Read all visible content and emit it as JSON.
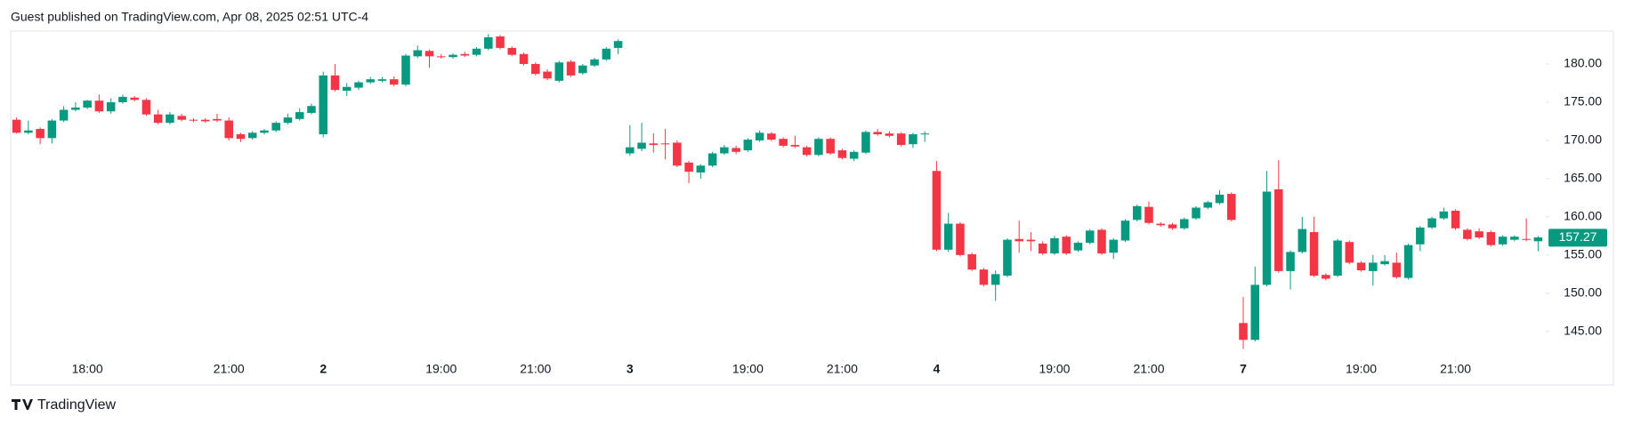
{
  "header": "Guest published on TradingView.com, Apr 08, 2025 02:51 UTC-4",
  "footer": "TradingView",
  "chart_data": {
    "type": "candlestick",
    "up_color": "#089981",
    "down_color": "#f23645",
    "open": [
      172.7,
      171.0,
      171.5,
      170.3,
      172.6,
      174.0,
      174.3,
      175.2,
      173.8,
      175.0,
      175.6,
      175.3,
      173.4,
      172.3,
      173.2,
      172.7,
      172.7,
      172.8,
      172.6,
      170.8,
      170.3,
      171.0,
      171.3,
      172.3,
      172.8,
      173.6,
      170.8,
      178.5,
      176.5,
      176.9,
      177.6,
      177.8,
      178.0,
      177.3,
      181.0,
      181.7,
      181.0,
      180.9,
      181.3,
      181.2,
      182.0,
      183.6,
      182.1,
      181.3,
      180.0,
      179.0,
      177.8,
      180.3,
      178.8,
      179.8,
      180.6,
      182.1,
      168.3,
      168.9,
      169.6,
      169.6,
      169.7,
      167.1,
      165.8,
      166.7,
      168.3,
      169.0,
      168.7,
      170.0,
      170.9,
      170.2,
      169.4,
      169.1,
      168.1,
      170.2,
      168.7,
      167.6,
      168.4,
      171.1,
      170.9,
      170.9,
      169.5,
      170.8,
      166.0,
      155.7,
      159.1,
      155.1,
      153.1,
      151.1,
      152.3,
      157.1,
      157.0,
      156.5,
      155.2,
      157.4,
      155.6,
      156.6,
      158.3,
      155.3,
      156.9,
      159.6,
      161.3,
      159.1,
      159.0,
      158.5,
      159.8,
      161.2,
      161.8,
      163.0,
      146.1,
      143.9,
      151.1,
      163.6,
      152.9,
      155.4,
      158.0,
      152.4,
      152.3,
      156.7,
      154.0,
      152.9,
      153.8,
      154.0,
      152.0,
      156.4,
      158.6,
      159.8,
      160.8,
      158.3,
      158.1,
      158.0,
      156.4,
      157.0,
      157.1,
      156.8
    ],
    "high": [
      173.0,
      172.6,
      171.7,
      172.8,
      174.5,
      175.0,
      175.3,
      176.0,
      175.5,
      176.0,
      175.8,
      175.5,
      174.0,
      173.7,
      173.5,
      172.9,
      172.9,
      173.5,
      173.0,
      171.0,
      171.2,
      171.5,
      172.5,
      173.5,
      174.2,
      174.8,
      179.0,
      180.0,
      177.5,
      177.8,
      178.3,
      178.3,
      178.4,
      181.3,
      182.4,
      181.9,
      181.3,
      181.4,
      181.6,
      182.2,
      183.9,
      183.8,
      182.3,
      181.5,
      180.2,
      179.3,
      180.4,
      180.5,
      180.0,
      180.8,
      182.2,
      183.2,
      172.0,
      172.3,
      170.9,
      171.5,
      170.0,
      167.3,
      166.9,
      168.5,
      169.4,
      169.3,
      170.3,
      171.3,
      171.1,
      170.4,
      170.6,
      169.3,
      170.4,
      170.4,
      168.9,
      168.7,
      171.3,
      171.5,
      171.2,
      171.1,
      171.0,
      171.2,
      167.3,
      160.5,
      159.3,
      155.3,
      153.3,
      153.0,
      157.2,
      159.5,
      158.0,
      156.8,
      157.5,
      157.6,
      156.8,
      158.4,
      158.5,
      157.2,
      159.7,
      161.6,
      162.0,
      159.3,
      159.2,
      159.9,
      161.4,
      162.1,
      163.5,
      163.2,
      149.5,
      153.5,
      166.0,
      167.4,
      155.6,
      160.0,
      160.0,
      152.6,
      157.1,
      156.9,
      154.2,
      155.0,
      155.0,
      155.3,
      156.5,
      158.8,
      160.0,
      161.2,
      161.0,
      158.5,
      158.5,
      158.2,
      157.6,
      157.6,
      159.8,
      157.5
    ],
    "low": [
      170.9,
      170.8,
      169.5,
      169.6,
      172.4,
      173.8,
      174.1,
      173.6,
      173.5,
      174.8,
      175.1,
      173.2,
      172.1,
      172.1,
      172.5,
      172.4,
      172.3,
      172.4,
      170.0,
      169.8,
      170.1,
      170.8,
      171.1,
      172.1,
      172.6,
      173.4,
      170.4,
      176.4,
      175.8,
      176.6,
      177.4,
      177.6,
      177.1,
      177.1,
      180.8,
      179.5,
      180.7,
      180.7,
      180.9,
      181.0,
      181.8,
      181.9,
      181.0,
      179.8,
      178.5,
      177.9,
      177.6,
      178.3,
      178.6,
      179.6,
      180.4,
      181.3,
      168.0,
      168.6,
      168.4,
      167.5,
      166.5,
      164.4,
      165.0,
      166.5,
      168.1,
      168.2,
      168.5,
      169.8,
      169.9,
      169.1,
      169.0,
      167.9,
      167.9,
      168.1,
      167.5,
      167.3,
      168.2,
      170.6,
      170.4,
      169.2,
      169.0,
      169.8,
      155.5,
      155.4,
      154.8,
      152.9,
      150.9,
      149.0,
      152.1,
      155.3,
      155.5,
      155.0,
      155.0,
      155.0,
      155.4,
      156.4,
      155.0,
      154.5,
      156.7,
      159.4,
      159.0,
      158.7,
      158.3,
      158.3,
      159.6,
      161.0,
      161.6,
      159.4,
      142.7,
      143.7,
      150.9,
      152.7,
      150.5,
      155.2,
      152.1,
      151.7,
      152.1,
      153.8,
      152.8,
      151.0,
      153.6,
      151.9,
      151.8,
      155.5,
      158.4,
      159.6,
      158.3,
      156.9,
      157.1,
      156.1,
      156.2,
      156.8,
      156.8,
      155.5
    ],
    "close": [
      171.0,
      171.3,
      170.3,
      172.6,
      174.0,
      174.3,
      175.2,
      173.8,
      175.0,
      175.7,
      175.3,
      173.4,
      172.3,
      173.4,
      172.7,
      172.6,
      172.5,
      172.6,
      170.3,
      170.2,
      171.0,
      171.3,
      172.3,
      173.0,
      173.7,
      174.5,
      178.5,
      176.6,
      177.0,
      177.6,
      178.0,
      178.0,
      177.3,
      181.1,
      181.8,
      181.0,
      180.9,
      181.2,
      181.1,
      182.0,
      183.5,
      182.1,
      181.2,
      180.0,
      178.7,
      178.1,
      180.2,
      178.5,
      179.8,
      180.6,
      182.0,
      183.0,
      169.1,
      169.7,
      169.4,
      169.5,
      166.7,
      165.9,
      166.7,
      168.3,
      169.1,
      168.5,
      170.1,
      171.0,
      170.1,
      169.3,
      169.2,
      168.1,
      170.2,
      168.3,
      167.7,
      168.5,
      171.1,
      170.8,
      170.6,
      169.4,
      170.8,
      170.9,
      155.7,
      159.1,
      155.0,
      153.1,
      151.1,
      152.5,
      157.0,
      156.8,
      156.8,
      155.2,
      157.2,
      155.2,
      156.6,
      158.2,
      155.2,
      157.0,
      159.5,
      161.4,
      159.2,
      158.9,
      158.5,
      159.7,
      161.2,
      161.9,
      162.9,
      159.6,
      143.9,
      151.1,
      163.3,
      152.9,
      155.4,
      158.4,
      152.3,
      151.9,
      156.9,
      154.0,
      153.0,
      154.0,
      154.2,
      152.1,
      156.3,
      158.6,
      159.8,
      160.7,
      158.5,
      157.1,
      157.3,
      156.3,
      157.4,
      157.4,
      157.0,
      157.3
    ],
    "xlim": [
      -0.5,
      129.5
    ],
    "xticks": [
      {
        "value": 6,
        "label": "18:00"
      },
      {
        "value": 18,
        "label": "21:00"
      },
      {
        "value": 26,
        "label": "2"
      },
      {
        "value": 36,
        "label": "19:00"
      },
      {
        "value": 44,
        "label": "21:00"
      },
      {
        "value": 52,
        "label": "3"
      },
      {
        "value": 62,
        "label": "19:00"
      },
      {
        "value": 70,
        "label": "21:00"
      },
      {
        "value": 78,
        "label": "4"
      },
      {
        "value": 88,
        "label": "19:00"
      },
      {
        "value": 96,
        "label": "21:00"
      },
      {
        "value": 104,
        "label": "7"
      },
      {
        "value": 114,
        "label": "19:00"
      },
      {
        "value": 122,
        "label": "21:00"
      }
    ],
    "ylim": [
      141.6,
      184.3
    ],
    "yticks": [
      {
        "value": 145,
        "label": "145.00"
      },
      {
        "value": 150,
        "label": "150.00"
      },
      {
        "value": 155,
        "label": "155.00"
      },
      {
        "value": 160,
        "label": "160.00"
      },
      {
        "value": 165,
        "label": "165.00"
      },
      {
        "value": 170,
        "label": "170.00"
      },
      {
        "value": 175,
        "label": "175.00"
      },
      {
        "value": 180,
        "label": "180.00"
      }
    ],
    "last_price": 157.27,
    "last_price_color": "#089981"
  }
}
